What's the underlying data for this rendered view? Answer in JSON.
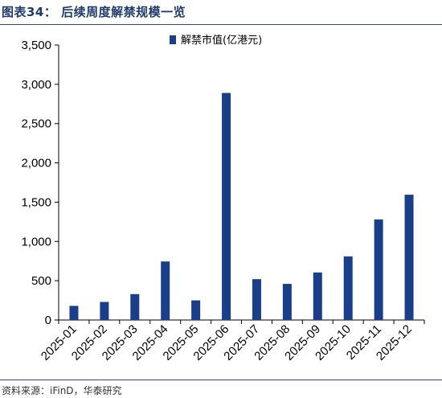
{
  "header": {
    "figure_title": "图表34： 后续周度解禁规模一览"
  },
  "footer": {
    "source": "资料来源：iFinD，华泰研究"
  },
  "colors": {
    "bar": "#1a3f8a",
    "rule": "#2b4a7e"
  },
  "chart_data": {
    "type": "bar",
    "categories": [
      "2025-01",
      "2025-02",
      "2025-03",
      "2025-04",
      "2025-05",
      "2025-06",
      "2025-07",
      "2025-08",
      "2025-09",
      "2025-10",
      "2025-11",
      "2025-12"
    ],
    "series": [
      {
        "name": "解禁市值(亿港元)",
        "values": [
          180,
          230,
          330,
          745,
          250,
          2890,
          520,
          460,
          605,
          810,
          1280,
          1595
        ]
      }
    ],
    "ylim": [
      0,
      3500
    ],
    "yticks": [
      0,
      500,
      1000,
      1500,
      2000,
      2500,
      3000,
      3500
    ],
    "ytick_labels": [
      "0",
      "500",
      "1,000",
      "1,500",
      "2,000",
      "2,500",
      "3,000",
      "3,500"
    ],
    "legend_position": "top-center",
    "grid": false
  }
}
